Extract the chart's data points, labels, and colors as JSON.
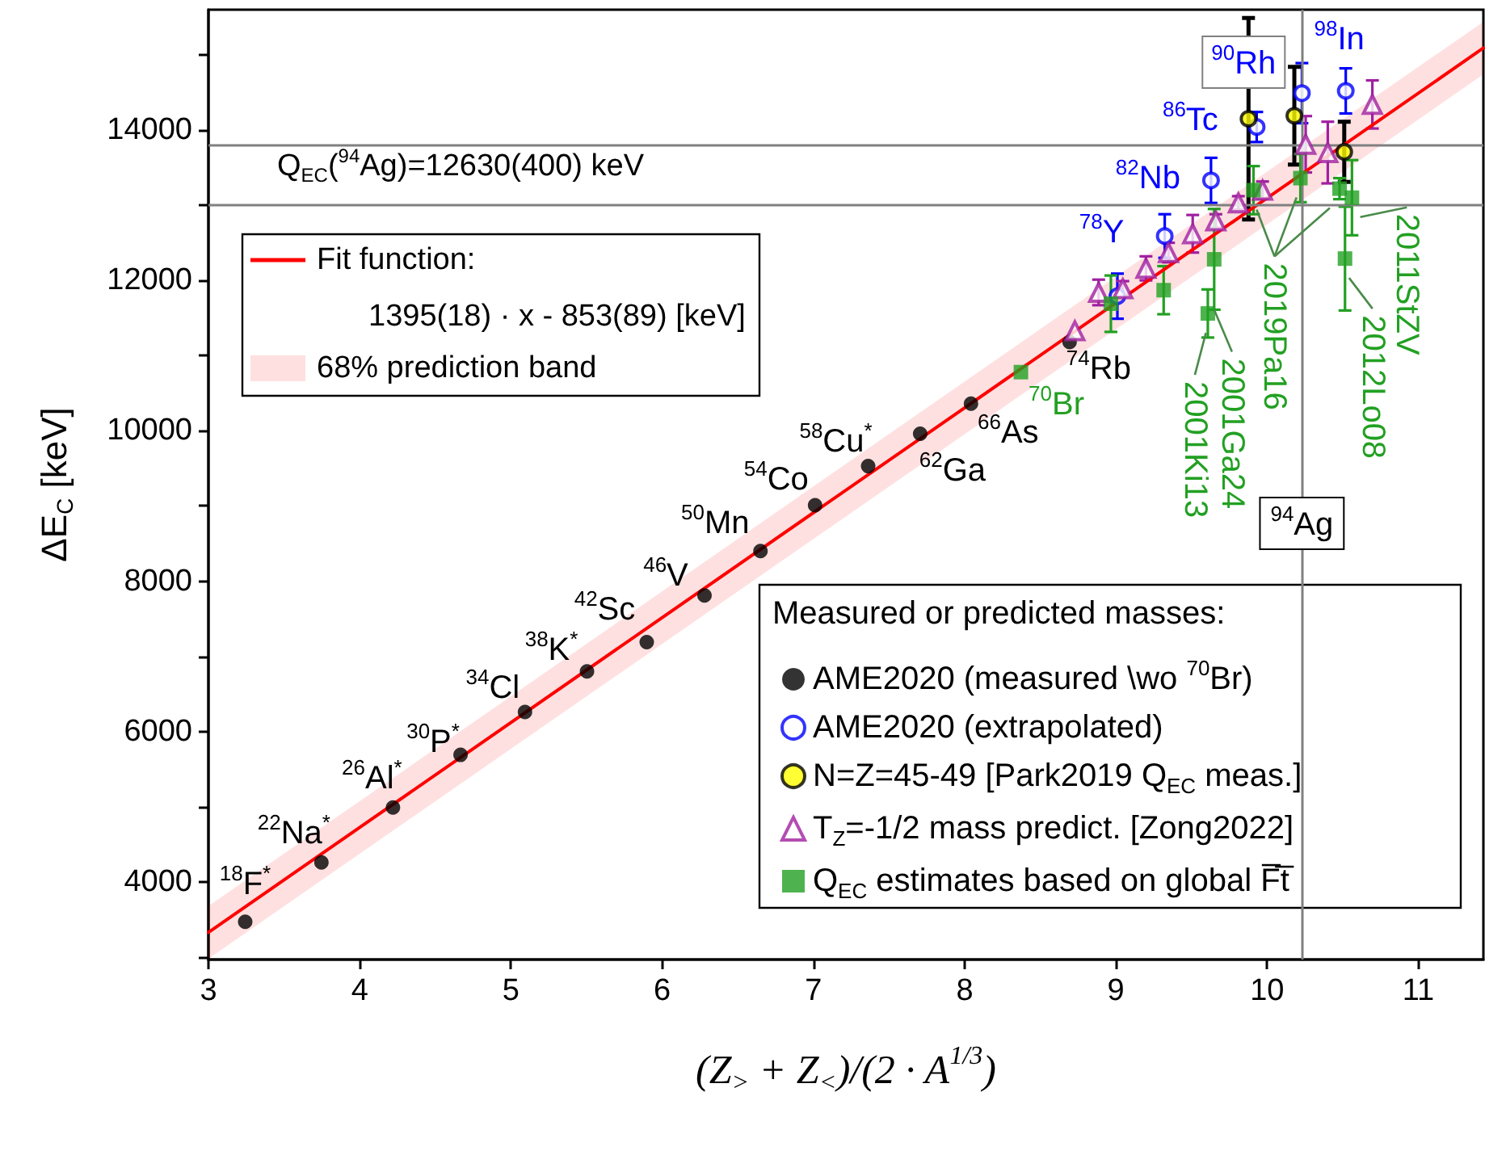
{
  "chart_data": {
    "type": "scatter",
    "xlabel": "(Z$_{>}$ + Z$_{<}$)/(2 · A$^{1/3}$)",
    "ylabel": "ΔE$_{C}$ [keV]",
    "xlim": [
      3,
      11.43
    ],
    "xticks": [
      3,
      4,
      5,
      6,
      7,
      8,
      9,
      10,
      11
    ],
    "ylim": [
      2968,
      15600
    ],
    "yticks": [
      {
        "value": 3000,
        "label": null
      },
      4000,
      {
        "value": 5000,
        "label": null
      },
      6000,
      {
        "value": 7000,
        "label": null
      },
      8000,
      {
        "value": 9000,
        "label": null
      },
      10000,
      {
        "value": 11000,
        "label": null
      },
      12000,
      {
        "value": 13000,
        "label": null
      },
      14000,
      {
        "value": 15000,
        "label": null
      }
    ],
    "grid": false,
    "legend": "bottom right",
    "legend_title": "Measured or predicted masses:",
    "series": [
      {
        "type": "line",
        "color": "#ff0000",
        "marker": "none",
        "x": [
          3,
          11.43
        ],
        "values": [
          3330,
          15090
        ],
        "lower": [
          2980,
          14740
        ],
        "upper": [
          3680,
          15440
        ]
      },
      {
        "name": "AME2020 (measured \\wo $^{70}$Br)",
        "color": "#000000",
        "marker": "circle",
        "x": [
          3.243,
          3.747,
          4.22,
          4.667,
          5.093,
          5.503,
          5.898,
          6.28,
          6.65,
          7.011,
          7.362,
          7.706,
          8.042,
          8.694
        ],
        "values": [
          3470,
          4260,
          4990,
          5690,
          6260,
          6800,
          7190,
          7810,
          8400,
          9010,
          9530,
          9960,
          10360,
          11180
        ]
      },
      {
        "name": "AME2020 (extrapolated)",
        "color": "#0000ff",
        "marker": "circle",
        "x": [
          9.01,
          9.323,
          9.629,
          9.931,
          10.23,
          10.52
        ],
        "values": [
          11790,
          12590,
          13330,
          14040,
          14490,
          14520
        ],
        "errors": [
          300,
          290,
          300,
          200,
          400,
          300
        ]
      },
      {
        "name": "N=Z=45-49 [Park2019 Q$_{EC}$ meas.]",
        "color": "#ffff00",
        "marker": "circle",
        "x": [
          9.877,
          10.18,
          10.51
        ],
        "values": [
          14150,
          14190,
          13710
        ],
        "errors": [
          1340,
          650,
          400
        ]
      },
      {
        "name": "T$_{Z}$=-1/2 mass predict. [Zong2022]",
        "color": "#a020a0",
        "marker": "triangle",
        "x": [
          8.729,
          8.886,
          9.046,
          9.199,
          9.348,
          9.508,
          9.661,
          9.81,
          9.97,
          10.255,
          10.401,
          10.696
        ],
        "values": [
          11330,
          11840,
          11890,
          12160,
          12370,
          12620,
          12790,
          13030,
          13200,
          13810,
          13700,
          14340
        ],
        "errors": [
          null,
          170,
          100,
          160,
          130,
          250,
          90,
          90,
          115,
          375,
          410,
          320
        ]
      },
      {
        "name": "Q$_{EC}$ estimates based on global F̅t̅",
        "color": "#22a022",
        "marker": "square",
        "x": [
          8.372,
          8.967,
          9.316,
          9.608,
          9.65,
          9.91,
          10.22,
          10.479,
          10.515,
          10.561
        ],
        "values": [
          10780,
          11690,
          11870,
          11560,
          12280,
          13200,
          13360,
          13220,
          12290,
          13100
        ],
        "errors": [
          null,
          375,
          320,
          320,
          670,
          320,
          320,
          140,
          690,
          500
        ]
      }
    ],
    "ref_lines": [
      {
        "axis": "y",
        "value": 13800,
        "color": "#808080"
      },
      {
        "axis": "y",
        "value": 13000,
        "color": "#808080"
      },
      {
        "axis": "x",
        "value": 10.23,
        "label": "$^{94}$Ag",
        "color": "#808080"
      }
    ],
    "annotations": [
      {
        "text": "$^{18}$F$^{*}$",
        "x": 3.243,
        "y": 3470
      },
      {
        "text": "$^{22}$Na$^{*}$",
        "x": 3.747,
        "y": 4260
      },
      {
        "text": "$^{26}$Al$^{*}$",
        "x": 4.22,
        "y": 4990
      },
      {
        "text": "$^{30}$P$^{*}$",
        "x": 4.667,
        "y": 5690
      },
      {
        "text": "$^{34}$Cl",
        "x": 5.093,
        "y": 6260
      },
      {
        "text": "$^{38}$K$^{*}$",
        "x": 5.503,
        "y": 6800
      },
      {
        "text": "$^{42}$Sc",
        "x": 5.898,
        "y": 7190
      },
      {
        "text": "$^{46}$V",
        "x": 6.28,
        "y": 7810
      },
      {
        "text": "$^{50}$Mn",
        "x": 6.65,
        "y": 8400
      },
      {
        "text": "$^{54}$Co",
        "x": 7.011,
        "y": 9010
      },
      {
        "text": "$^{58}$Cu$^{*}$",
        "x": 7.362,
        "y": 9530
      },
      {
        "text": "$^{62}$Ga",
        "x": 7.706,
        "y": 9960
      },
      {
        "text": "$^{66}$As",
        "x": 8.042,
        "y": 10360
      },
      {
        "text": "$^{70}$Br",
        "x": 8.372,
        "y": 10780
      },
      {
        "text": "$^{74}$Rb",
        "x": 8.694,
        "y": 11180
      },
      {
        "text": "$^{78}$Y",
        "x": 9.323,
        "y": 12590
      },
      {
        "text": "$^{82}$Nb",
        "x": 9.629,
        "y": 13330
      },
      {
        "text": "$^{86}$Tc",
        "x": 9.931,
        "y": 14040
      },
      {
        "text": "$^{90}$Rh",
        "x": 9.877,
        "y": 14150
      },
      {
        "text": "$^{98}$In",
        "x": 10.52,
        "y": 14520
      },
      "Q$_{EC}$($^{94}$Ag)=12630(400) keV",
      "1395(18) · x - 853(89) [keV]",
      {
        "text": "2001Ki13",
        "x": 9.608,
        "y": 11560
      },
      {
        "text": "2001Ga24",
        "x": 9.65,
        "y": 11610
      },
      {
        "text": "2019Pa16",
        "x": 9.91,
        "y": 13200
      },
      {
        "text": "2012Lo08",
        "x": 10.515,
        "y": 12290
      },
      {
        "text": "2011StZV",
        "x": 10.561,
        "y": 13100
      },
      "Fit function:",
      "68% prediction band"
    ]
  }
}
